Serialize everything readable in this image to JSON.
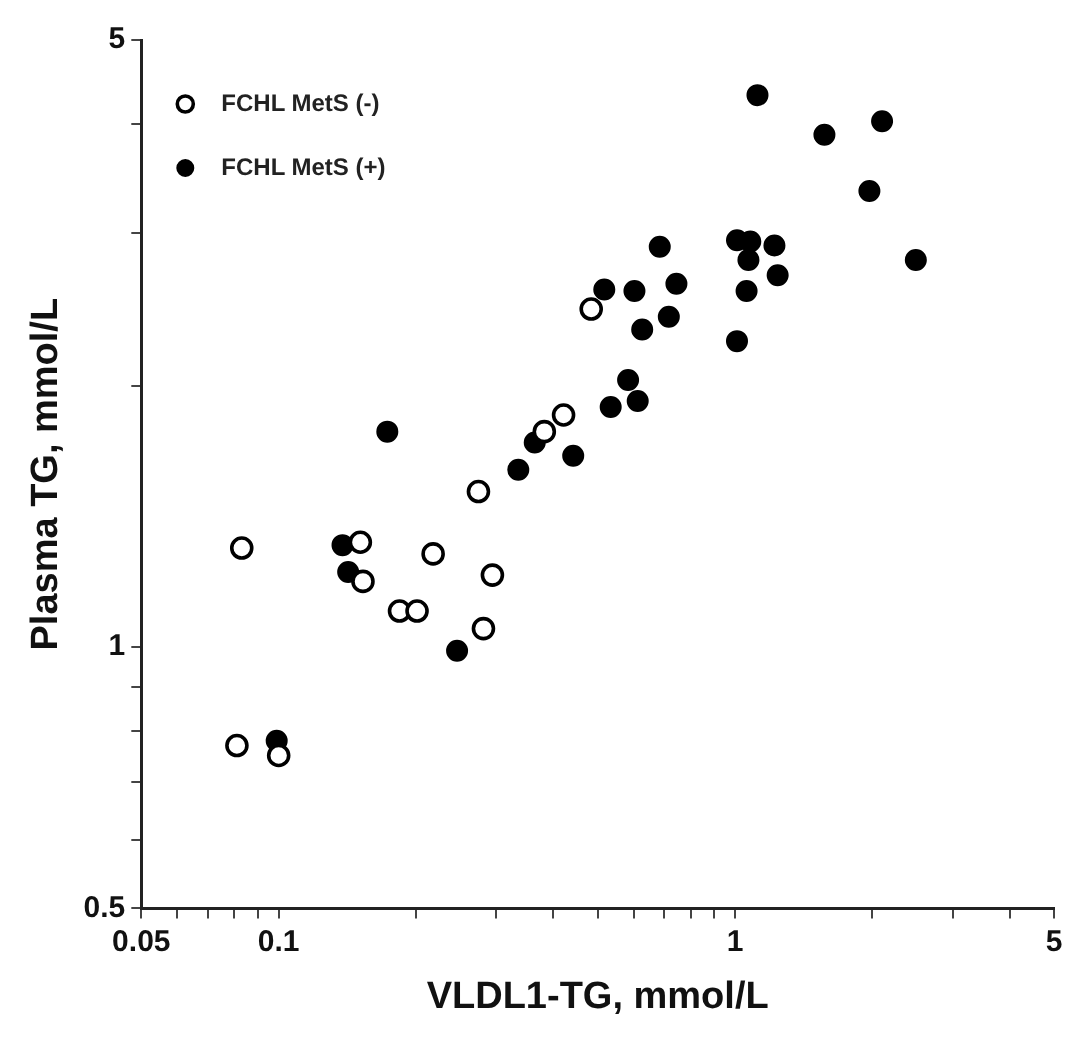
{
  "chart_data": {
    "type": "scatter",
    "xlabel": "VLDL1-TG, mmol/L",
    "ylabel": "Plasma TG, mmol/L",
    "log": "xy",
    "grid": false,
    "legend": "top left",
    "marker": "circle",
    "xlim": [
      0.05,
      5
    ],
    "ylim": [
      0.5,
      5
    ],
    "xticks": [
      0.05,
      {
        "value": 0.06,
        "label": null
      },
      {
        "value": 0.07,
        "label": null
      },
      {
        "value": 0.08,
        "label": null
      },
      {
        "value": 0.09,
        "label": null
      },
      0.1,
      {
        "value": 0.2,
        "label": null
      },
      {
        "value": 0.3,
        "label": null
      },
      {
        "value": 0.4,
        "label": null
      },
      {
        "value": 0.5,
        "label": null
      },
      {
        "value": 0.6,
        "label": null
      },
      {
        "value": 0.7,
        "label": null
      },
      {
        "value": 0.8,
        "label": null
      },
      {
        "value": 0.9,
        "label": null
      },
      1,
      {
        "value": 2,
        "label": null
      },
      {
        "value": 3,
        "label": null
      },
      {
        "value": 4,
        "label": null
      },
      5
    ],
    "yticks": [
      0.5,
      {
        "value": 0.6,
        "label": null
      },
      {
        "value": 0.7,
        "label": null
      },
      {
        "value": 0.8,
        "label": null
      },
      {
        "value": 0.9,
        "label": null
      },
      1,
      {
        "value": 2,
        "label": null
      },
      {
        "value": 3,
        "label": null
      },
      {
        "value": 4,
        "label": null
      },
      5
    ],
    "series": [
      {
        "name": "FCHL MetS (-)",
        "color": "#000000",
        "x": [
          0.484,
          0.421,
          0.382,
          0.274,
          0.083,
          0.151,
          0.153,
          0.218,
          0.294,
          0.184,
          0.201,
          0.281,
          0.081,
          0.1
        ],
        "values": [
          2.45,
          1.85,
          1.77,
          1.51,
          1.3,
          1.32,
          1.19,
          1.28,
          1.21,
          1.1,
          1.1,
          1.05,
          0.77,
          0.75
        ]
      },
      {
        "name": "FCHL MetS (+)",
        "color": "#000000",
        "x": [
          0.517,
          0.173,
          0.364,
          0.534,
          0.442,
          0.335,
          1.12,
          1.57,
          2.1,
          1.97,
          0.684,
          1.01,
          1.08,
          1.07,
          1.22,
          1.24,
          1.06,
          1.01,
          2.49,
          0.602,
          0.744,
          0.716,
          0.626,
          0.583,
          0.612,
          0.138,
          0.142,
          0.246,
          0.099
        ],
        "values": [
          2.58,
          1.77,
          1.72,
          1.89,
          1.66,
          1.6,
          4.32,
          3.89,
          4.03,
          3.35,
          2.89,
          2.94,
          2.93,
          2.79,
          2.9,
          2.68,
          2.57,
          2.25,
          2.79,
          2.57,
          2.62,
          2.4,
          2.32,
          2.03,
          1.92,
          1.31,
          1.22,
          0.99,
          0.78
        ]
      }
    ]
  }
}
